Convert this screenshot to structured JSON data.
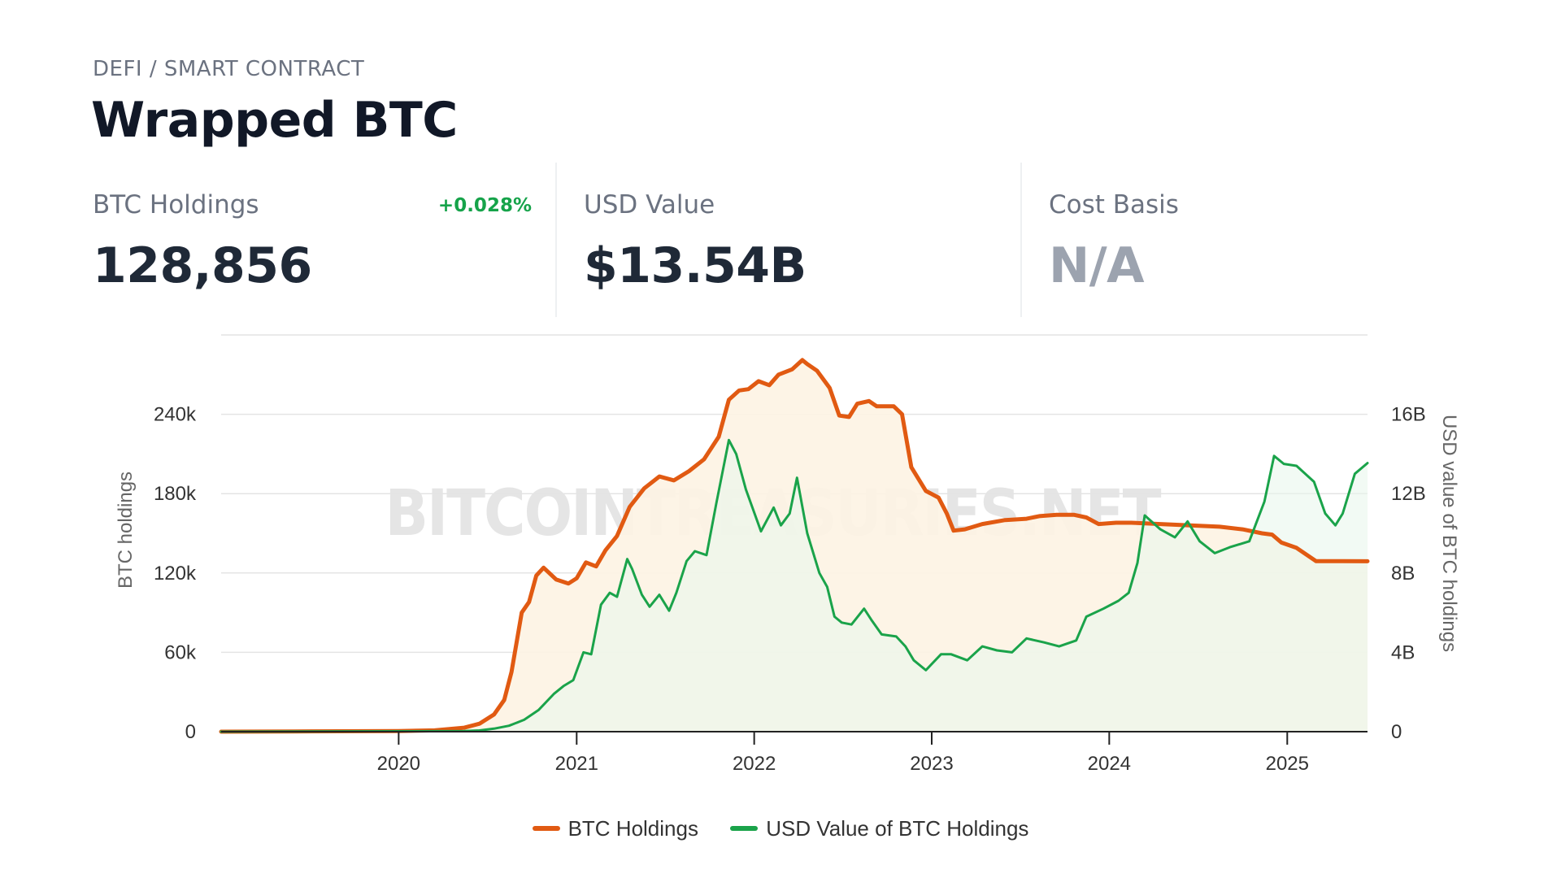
{
  "header": {
    "category": "DEFI / SMART CONTRACT",
    "title": "Wrapped BTC"
  },
  "stats": {
    "btc_holdings": {
      "label": "BTC Holdings",
      "value": "128,856",
      "change": "+0.028%"
    },
    "usd_value": {
      "label": "USD Value",
      "value": "$13.54B"
    },
    "cost_basis": {
      "label": "Cost Basis",
      "value": "N/A"
    }
  },
  "colors": {
    "btc": "#e15a12",
    "usd": "#1aa34a",
    "btc_fill": "#fdf3e3",
    "usd_fill": "#e9f6ec"
  },
  "watermark": "BITCOINTREASURIES.NET",
  "chart_data": {
    "type": "line",
    "x_type": "date",
    "xlim": [
      "2019-01-01",
      "2025-06-15"
    ],
    "x_ticks": [
      "2020",
      "2021",
      "2022",
      "2023",
      "2024",
      "2025"
    ],
    "y_left": {
      "label": "BTC holdings",
      "ylim": [
        0,
        300000
      ],
      "ticks": [
        "0",
        "60k",
        "120k",
        "180k",
        "240k"
      ],
      "tick_values": [
        0,
        60000,
        120000,
        180000,
        240000
      ]
    },
    "y_right": {
      "label": "USD value of BTC holdings",
      "ylim": [
        0,
        20
      ],
      "ticks": [
        "0",
        "4B",
        "8B",
        "12B",
        "16B"
      ],
      "tick_values": [
        0,
        4,
        8,
        12,
        16
      ]
    },
    "grid": true,
    "legend_position": "bottom",
    "series": [
      {
        "name": "BTC Holdings",
        "axis": "left",
        "points": [
          [
            "2019-01-01",
            0
          ],
          [
            "2019-06-01",
            200
          ],
          [
            "2020-01-01",
            500
          ],
          [
            "2020-03-15",
            1000
          ],
          [
            "2020-05-15",
            3000
          ],
          [
            "2020-06-15",
            6000
          ],
          [
            "2020-07-15",
            13000
          ],
          [
            "2020-08-05",
            24000
          ],
          [
            "2020-08-20",
            45000
          ],
          [
            "2020-09-10",
            90000
          ],
          [
            "2020-09-25",
            98000
          ],
          [
            "2020-10-10",
            118000
          ],
          [
            "2020-10-25",
            124000
          ],
          [
            "2020-11-20",
            115000
          ],
          [
            "2020-12-15",
            112000
          ],
          [
            "2021-01-01",
            116000
          ],
          [
            "2021-01-20",
            128000
          ],
          [
            "2021-02-10",
            125000
          ],
          [
            "2021-03-01",
            137000
          ],
          [
            "2021-03-25",
            148000
          ],
          [
            "2021-04-20",
            170000
          ],
          [
            "2021-05-20",
            184000
          ],
          [
            "2021-06-20",
            193000
          ],
          [
            "2021-07-20",
            190000
          ],
          [
            "2021-08-20",
            197000
          ],
          [
            "2021-09-20",
            206000
          ],
          [
            "2021-10-20",
            223000
          ],
          [
            "2021-11-10",
            251000
          ],
          [
            "2021-12-01",
            258000
          ],
          [
            "2021-12-20",
            259000
          ],
          [
            "2022-01-10",
            265000
          ],
          [
            "2022-02-01",
            262000
          ],
          [
            "2022-02-20",
            270000
          ],
          [
            "2022-03-20",
            274000
          ],
          [
            "2022-04-10",
            281000
          ],
          [
            "2022-04-20",
            278000
          ],
          [
            "2022-05-10",
            273000
          ],
          [
            "2022-06-05",
            260000
          ],
          [
            "2022-06-25",
            239000
          ],
          [
            "2022-07-15",
            238000
          ],
          [
            "2022-08-01",
            248000
          ],
          [
            "2022-08-25",
            250000
          ],
          [
            "2022-09-10",
            246000
          ],
          [
            "2022-10-15",
            246000
          ],
          [
            "2022-11-01",
            240000
          ],
          [
            "2022-11-20",
            200000
          ],
          [
            "2022-12-20",
            182000
          ],
          [
            "2023-01-15",
            177000
          ],
          [
            "2023-02-01",
            165000
          ],
          [
            "2023-02-15",
            152000
          ],
          [
            "2023-03-10",
            153000
          ],
          [
            "2023-04-15",
            157000
          ],
          [
            "2023-06-01",
            160000
          ],
          [
            "2023-07-15",
            161000
          ],
          [
            "2023-08-10",
            163000
          ],
          [
            "2023-09-15",
            164000
          ],
          [
            "2023-10-20",
            164000
          ],
          [
            "2023-11-15",
            162000
          ],
          [
            "2023-12-10",
            157000
          ],
          [
            "2024-01-15",
            158000
          ],
          [
            "2024-02-15",
            158000
          ],
          [
            "2024-04-15",
            157000
          ],
          [
            "2024-06-15",
            156000
          ],
          [
            "2024-08-15",
            155000
          ],
          [
            "2024-10-01",
            153000
          ],
          [
            "2024-11-10",
            150000
          ],
          [
            "2024-12-01",
            149000
          ],
          [
            "2024-12-20",
            143000
          ],
          [
            "2025-01-20",
            139000
          ],
          [
            "2025-03-01",
            129000
          ],
          [
            "2025-06-15",
            128856
          ]
        ]
      },
      {
        "name": "USD Value of BTC Holdings",
        "axis": "right",
        "points": [
          [
            "2019-01-01",
            0
          ],
          [
            "2020-01-01",
            0.02
          ],
          [
            "2020-05-15",
            0.03
          ],
          [
            "2020-06-15",
            0.06
          ],
          [
            "2020-07-15",
            0.15
          ],
          [
            "2020-08-15",
            0.3
          ],
          [
            "2020-09-15",
            0.6
          ],
          [
            "2020-10-15",
            1.1
          ],
          [
            "2020-11-15",
            1.9
          ],
          [
            "2020-12-05",
            2.3
          ],
          [
            "2020-12-25",
            2.6
          ],
          [
            "2021-01-15",
            4.0
          ],
          [
            "2021-01-31",
            3.9
          ],
          [
            "2021-02-20",
            6.4
          ],
          [
            "2021-03-10",
            7.0
          ],
          [
            "2021-03-25",
            6.8
          ],
          [
            "2021-04-15",
            8.7
          ],
          [
            "2021-04-25",
            8.2
          ],
          [
            "2021-05-15",
            6.9
          ],
          [
            "2021-05-31",
            6.3
          ],
          [
            "2021-06-20",
            6.9
          ],
          [
            "2021-07-10",
            6.1
          ],
          [
            "2021-07-25",
            7.0
          ],
          [
            "2021-08-15",
            8.6
          ],
          [
            "2021-09-01",
            9.1
          ],
          [
            "2021-09-25",
            8.9
          ],
          [
            "2021-10-15",
            11.5
          ],
          [
            "2021-11-10",
            14.7
          ],
          [
            "2021-11-25",
            14.0
          ],
          [
            "2021-12-15",
            12.2
          ],
          [
            "2022-01-15",
            10.1
          ],
          [
            "2022-02-10",
            11.3
          ],
          [
            "2022-02-25",
            10.4
          ],
          [
            "2022-03-15",
            11.0
          ],
          [
            "2022-03-30",
            12.8
          ],
          [
            "2022-04-20",
            10.0
          ],
          [
            "2022-05-15",
            8.0
          ],
          [
            "2022-05-31",
            7.3
          ],
          [
            "2022-06-15",
            5.8
          ],
          [
            "2022-06-30",
            5.5
          ],
          [
            "2022-07-20",
            5.4
          ],
          [
            "2022-08-15",
            6.2
          ],
          [
            "2022-08-31",
            5.6
          ],
          [
            "2022-09-20",
            4.9
          ],
          [
            "2022-10-20",
            4.8
          ],
          [
            "2022-11-08",
            4.3
          ],
          [
            "2022-11-25",
            3.6
          ],
          [
            "2022-12-20",
            3.1
          ],
          [
            "2023-01-20",
            3.9
          ],
          [
            "2023-02-10",
            3.9
          ],
          [
            "2023-03-15",
            3.6
          ],
          [
            "2023-04-15",
            4.3
          ],
          [
            "2023-05-15",
            4.1
          ],
          [
            "2023-06-15",
            4.0
          ],
          [
            "2023-07-15",
            4.7
          ],
          [
            "2023-08-20",
            4.5
          ],
          [
            "2023-09-20",
            4.3
          ],
          [
            "2023-10-25",
            4.6
          ],
          [
            "2023-11-15",
            5.8
          ],
          [
            "2023-12-20",
            6.2
          ],
          [
            "2024-01-20",
            6.6
          ],
          [
            "2024-02-10",
            7.0
          ],
          [
            "2024-02-28",
            8.5
          ],
          [
            "2024-03-14",
            10.9
          ],
          [
            "2024-04-15",
            10.2
          ],
          [
            "2024-05-15",
            9.8
          ],
          [
            "2024-06-10",
            10.6
          ],
          [
            "2024-07-05",
            9.6
          ],
          [
            "2024-08-05",
            9.0
          ],
          [
            "2024-09-05",
            9.3
          ],
          [
            "2024-10-15",
            9.6
          ],
          [
            "2024-11-15",
            11.6
          ],
          [
            "2024-12-05",
            13.9
          ],
          [
            "2024-12-25",
            13.5
          ],
          [
            "2025-01-20",
            13.4
          ],
          [
            "2025-02-25",
            12.6
          ],
          [
            "2025-03-20",
            11.0
          ],
          [
            "2025-04-10",
            10.4
          ],
          [
            "2025-04-25",
            11.0
          ],
          [
            "2025-05-20",
            13.0
          ],
          [
            "2025-06-15",
            13.54
          ]
        ]
      }
    ]
  }
}
